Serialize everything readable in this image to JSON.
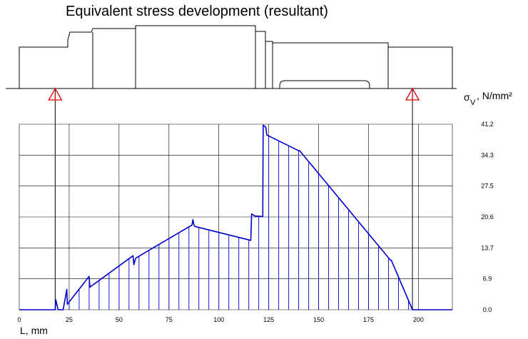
{
  "chart_data": {
    "type": "line",
    "title": "Equivalent stress development (resultant)",
    "xlabel": "L, mm",
    "ylabel_symbol": "σ",
    "ylabel_subscript": "V",
    "ylabel_unit": ", N/mm²",
    "x_ticks": [
      "0",
      "25",
      "50",
      "75",
      "100",
      "125",
      "150",
      "175",
      "200"
    ],
    "y_ticks": [
      "0.0",
      "6.9",
      "13.7",
      "20.6",
      "27.5",
      "34.3",
      "41.2"
    ],
    "xlim": [
      0,
      217
    ],
    "ylim": [
      0,
      41.2
    ],
    "grid": true,
    "supports_x": [
      18,
      197
    ],
    "series": [
      {
        "color": "#0000cc",
        "x": [
          0,
          18,
          18.3,
          19.5,
          22,
          23.8,
          24.1,
          35,
          35.4,
          57,
          57.4,
          58,
          58.5,
          86.5,
          87,
          87.5,
          88,
          116,
          116.4,
          118,
          118.4,
          122,
          122.2,
          123.5,
          124,
          140,
          140.5,
          186,
          186.4,
          197,
          198,
          217
        ],
        "y": [
          0,
          0,
          2.2,
          0,
          0,
          4.5,
          1.2,
          7.4,
          5.0,
          12.0,
          10.0,
          11.0,
          11.5,
          18.8,
          20.0,
          18.8,
          18.5,
          15.4,
          21.3,
          20.8,
          20.8,
          20.7,
          41.0,
          40.5,
          38.8,
          35.3,
          35.3,
          11.0,
          11.0,
          0,
          0,
          0
        ]
      }
    ],
    "hatch_x": [
      25,
      30,
      35,
      40,
      45,
      50,
      55,
      60,
      65,
      70,
      75,
      80,
      85,
      90,
      95,
      100,
      105,
      110,
      115,
      120,
      125,
      130,
      135,
      140,
      145,
      150,
      155,
      160,
      165,
      170,
      175,
      180,
      185,
      190,
      195
    ]
  }
}
